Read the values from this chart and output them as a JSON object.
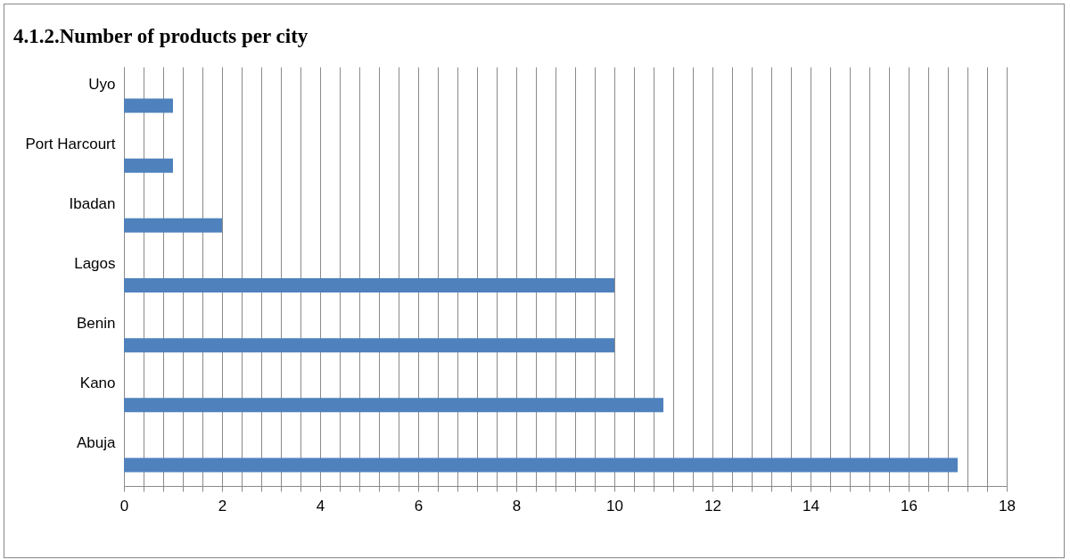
{
  "chart_data": {
    "type": "bar",
    "orientation": "horizontal",
    "title": "4.1.2.Number of products per city",
    "categories": [
      "Uyo",
      "Port Harcourt",
      "Ibadan",
      "Lagos",
      "Benin",
      "Kano",
      "Abuja"
    ],
    "values": [
      1,
      1,
      2,
      10,
      10,
      11,
      17
    ],
    "color": "#4f81bd",
    "xlim": [
      0,
      18
    ],
    "xticks": [
      0,
      {
        "value": 0.4,
        "label": null
      },
      {
        "value": 0.8,
        "label": null
      },
      {
        "value": 1.2,
        "label": null
      },
      {
        "value": 1.6,
        "label": null
      },
      2,
      {
        "value": 2.4,
        "label": null
      },
      {
        "value": 2.8,
        "label": null
      },
      {
        "value": 3.2,
        "label": null
      },
      {
        "value": 3.6,
        "label": null
      },
      4,
      {
        "value": 4.4,
        "label": null
      },
      {
        "value": 4.8,
        "label": null
      },
      {
        "value": 5.2,
        "label": null
      },
      {
        "value": 5.6,
        "label": null
      },
      6,
      {
        "value": 6.4,
        "label": null
      },
      {
        "value": 6.8,
        "label": null
      },
      {
        "value": 7.2,
        "label": null
      },
      {
        "value": 7.6,
        "label": null
      },
      8,
      {
        "value": 8.4,
        "label": null
      },
      {
        "value": 8.8,
        "label": null
      },
      {
        "value": 9.2,
        "label": null
      },
      {
        "value": 9.6,
        "label": null
      },
      10,
      {
        "value": 10.4,
        "label": null
      },
      {
        "value": 10.8,
        "label": null
      },
      {
        "value": 11.2,
        "label": null
      },
      {
        "value": 11.6,
        "label": null
      },
      12,
      {
        "value": 12.4,
        "label": null
      },
      {
        "value": 12.8,
        "label": null
      },
      {
        "value": 13.2,
        "label": null
      },
      {
        "value": 13.6,
        "label": null
      },
      14,
      {
        "value": 14.4,
        "label": null
      },
      {
        "value": 14.8,
        "label": null
      },
      {
        "value": 15.2,
        "label": null
      },
      {
        "value": 15.6,
        "label": null
      },
      16,
      {
        "value": 16.4,
        "label": null
      },
      {
        "value": 16.8,
        "label": null
      },
      {
        "value": 17.2,
        "label": null
      },
      {
        "value": 17.6,
        "label": null
      },
      18
    ],
    "grid": "x"
  }
}
